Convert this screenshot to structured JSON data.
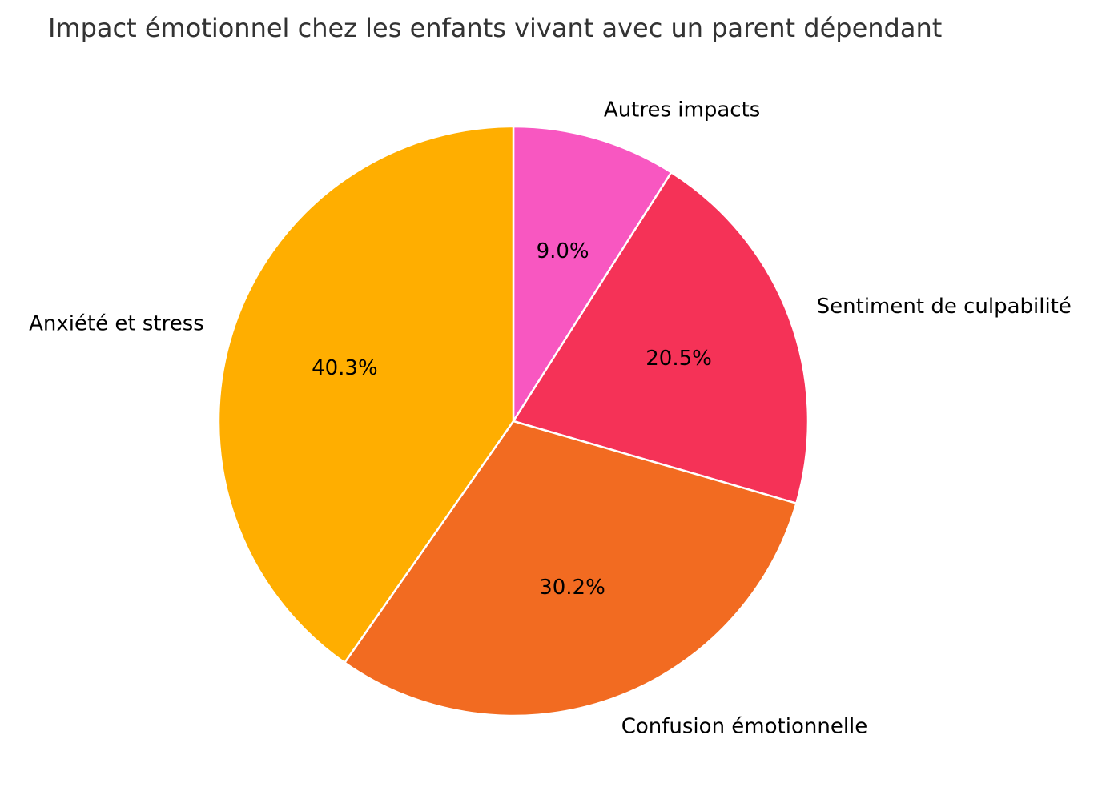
{
  "chart_data": {
    "type": "pie",
    "title": "Impact émotionnel chez les enfants vivant avec un parent dépendant",
    "start_angle_deg": 90,
    "direction": "clockwise",
    "slices": [
      {
        "label": "Autres impacts",
        "value": 9.0,
        "pct_label": "9.0%",
        "color": "#F857C1"
      },
      {
        "label": "Sentiment de culpabilité",
        "value": 20.5,
        "pct_label": "20.5%",
        "color": "#F53257"
      },
      {
        "label": "Confusion émotionnelle",
        "value": 30.2,
        "pct_label": "30.2%",
        "color": "#F26B21"
      },
      {
        "label": "Anxiété et stress",
        "value": 40.3,
        "pct_label": "40.3%",
        "color": "#FFAE00"
      }
    ]
  }
}
